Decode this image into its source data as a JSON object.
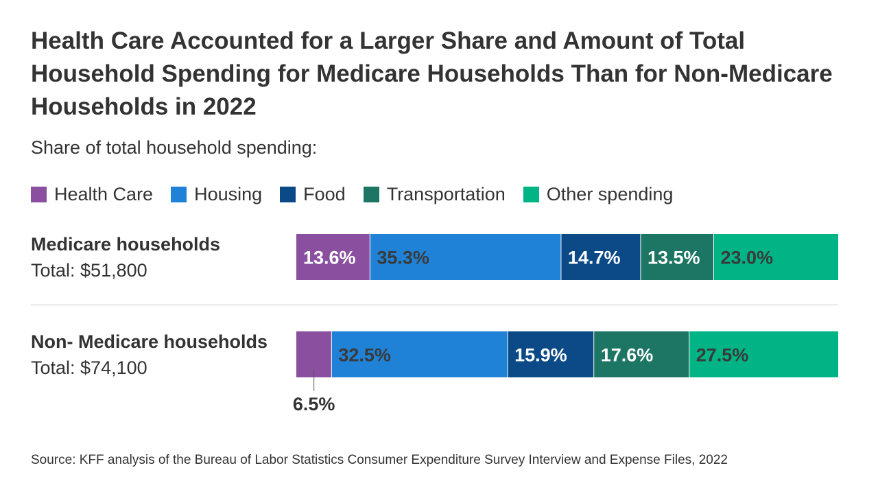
{
  "chart_data": {
    "type": "bar",
    "orientation": "horizontal",
    "stacked": true,
    "title": "Health Care Accounted for a Larger Share and Amount of Total Household Spending for Medicare Households Than for Non-Medicare Households in 2022",
    "subtitle": "Share of total household spending:",
    "categories": [
      "Medicare households",
      "Non- Medicare households"
    ],
    "totals": [
      "Total: $51,800",
      "Total: $74,100"
    ],
    "series": [
      {
        "name": "Health Care",
        "color": "#8a4f9e",
        "label_color": "#ffffff",
        "values": [
          13.6,
          6.5
        ],
        "labels": [
          "13.6%",
          "6.5%"
        ]
      },
      {
        "name": "Housing",
        "color": "#1f82d7",
        "label_color": "#333333",
        "values": [
          35.3,
          32.5
        ],
        "labels": [
          "35.3%",
          "32.5%"
        ]
      },
      {
        "name": "Food",
        "color": "#0b4a86",
        "label_color": "#ffffff",
        "values": [
          14.7,
          15.9
        ],
        "labels": [
          "14.7%",
          "15.9%"
        ]
      },
      {
        "name": "Transportation",
        "color": "#1d7563",
        "label_color": "#ffffff",
        "values": [
          13.5,
          17.6
        ],
        "labels": [
          "13.5%",
          "17.6%"
        ]
      },
      {
        "name": "Other spending",
        "color": "#00b486",
        "label_color": "#333333",
        "values": [
          23.0,
          27.5
        ],
        "labels": [
          "23.0%",
          "27.5%"
        ]
      }
    ],
    "xlim": [
      0,
      100
    ],
    "legend_position": "top",
    "grid": false
  },
  "source": "Source: KFF analysis of the Bureau of Labor Statistics Consumer Expenditure Survey Interview and Expense Files, 2022"
}
